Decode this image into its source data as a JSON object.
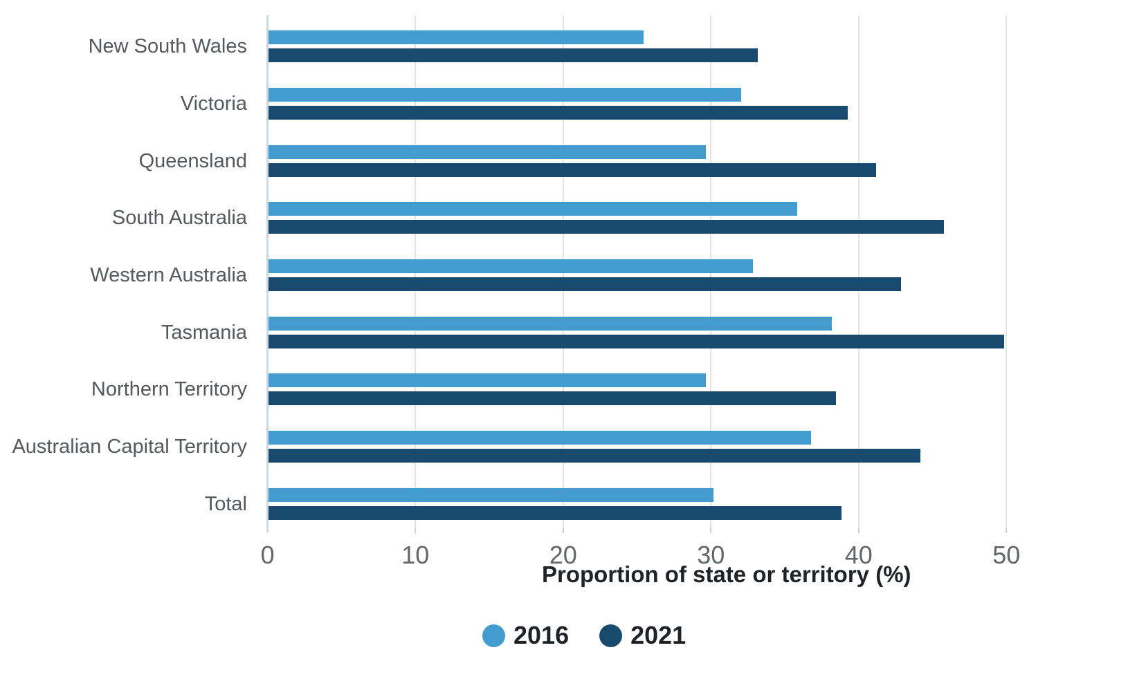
{
  "chart_data": {
    "type": "bar",
    "orientation": "horizontal",
    "title": "",
    "xlabel": "Proportion of state or territory (%)",
    "ylabel": "",
    "categories": [
      "New South Wales",
      "Victoria",
      "Queensland",
      "South Australia",
      "Western Australia",
      "Tasmania",
      "Northern Territory",
      "Australian Capital Territory",
      "Total"
    ],
    "series": [
      {
        "name": "2016",
        "color": "#449CCE",
        "values": [
          25.4,
          32.0,
          29.6,
          35.8,
          32.8,
          38.1,
          29.6,
          36.7,
          30.1
        ]
      },
      {
        "name": "2021",
        "color": "#194A6E",
        "values": [
          33.1,
          39.2,
          41.1,
          45.7,
          42.8,
          49.8,
          38.4,
          44.1,
          38.8
        ]
      }
    ],
    "x_ticks": [
      0,
      10,
      20,
      30,
      40,
      50
    ],
    "xlim": [
      0,
      50
    ],
    "grid": "vertical-gridlines-only",
    "legend_position": "bottom-center"
  },
  "colors": {
    "background": "#FFFFFF",
    "gridline": "#E4E4E4",
    "axis_zero_line": "#C9D6E3",
    "tick_mark": "#CFCFCF",
    "category_label": "#55585C",
    "tick_label": "#636669",
    "axis_title": "#1F2328",
    "legend_label": "#1F2328"
  }
}
